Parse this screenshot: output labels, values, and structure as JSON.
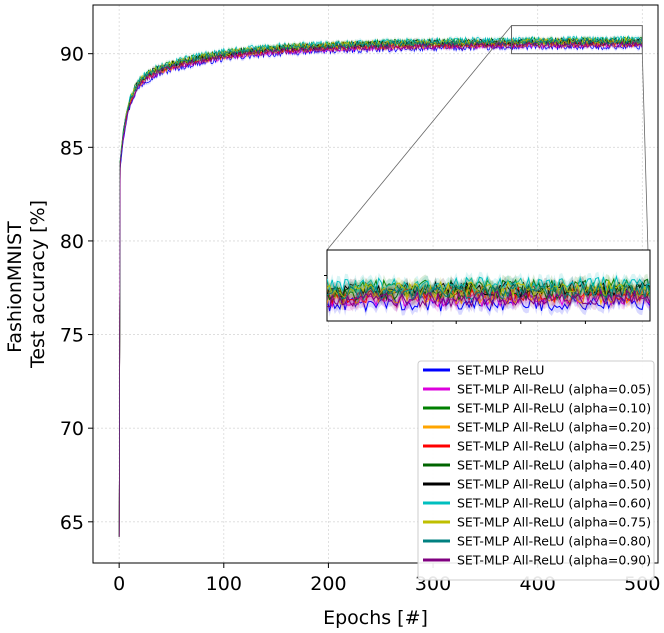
{
  "chart_data": {
    "type": "line",
    "xlabel": "Epochs [#]",
    "ylabel_lines": [
      "FashionMNIST",
      "Test accuracy [%]"
    ],
    "xlim": [
      -25,
      515
    ],
    "ylim": [
      62.8,
      92.6
    ],
    "xticks": [
      0,
      100,
      200,
      300,
      400,
      500
    ],
    "yticks": [
      65,
      70,
      75,
      80,
      85,
      90
    ],
    "grid": true,
    "legend_position": "lower-right",
    "start_value": 64.2,
    "zoom_region": {
      "x": [
        375,
        500
      ],
      "y": [
        90.0,
        91.5
      ]
    },
    "series": [
      {
        "name": "SET-MLP ReLU",
        "color": "#0000ff",
        "final": 90.45
      },
      {
        "name": "SET-MLP All-ReLU (alpha=0.05)",
        "color": "#dd00dd",
        "final": 90.55
      },
      {
        "name": "SET-MLP All-ReLU (alpha=0.10)",
        "color": "#008000",
        "final": 90.8
      },
      {
        "name": "SET-MLP All-ReLU (alpha=0.20)",
        "color": "#ffa500",
        "final": 90.6
      },
      {
        "name": "SET-MLP All-ReLU (alpha=0.25)",
        "color": "#ff0000",
        "final": 90.65
      },
      {
        "name": "SET-MLP All-ReLU (alpha=0.40)",
        "color": "#006400",
        "final": 90.7
      },
      {
        "name": "SET-MLP All-ReLU (alpha=0.50)",
        "color": "#000000",
        "final": 90.75
      },
      {
        "name": "SET-MLP All-ReLU (alpha=0.60)",
        "color": "#00bfbf",
        "final": 90.85
      },
      {
        "name": "SET-MLP All-ReLU (alpha=0.75)",
        "color": "#bfbf00",
        "final": 90.75
      },
      {
        "name": "SET-MLP All-ReLU (alpha=0.80)",
        "color": "#008080",
        "final": 90.7
      },
      {
        "name": "SET-MLP All-ReLU (alpha=0.90)",
        "color": "#800080",
        "final": 90.55
      }
    ]
  }
}
